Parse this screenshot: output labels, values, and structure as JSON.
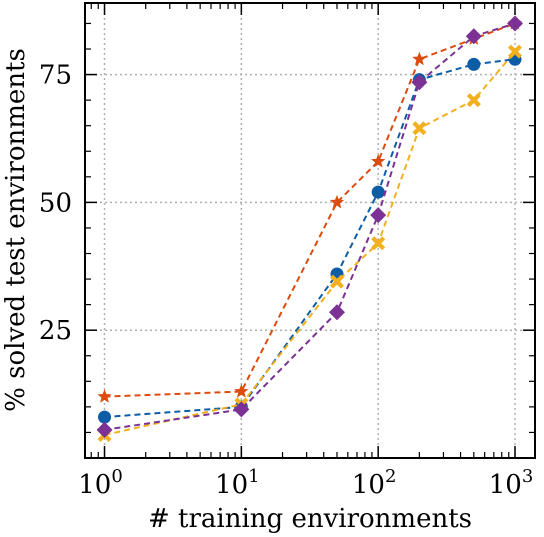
{
  "chart_data": {
    "type": "line",
    "title": "",
    "xlabel": "# training environments",
    "ylabel": "% solved test environments",
    "xscale": "log",
    "xlim": [
      0.72,
      1400
    ],
    "ylim": [
      0,
      89
    ],
    "grid": true,
    "x_ticks": [
      {
        "value": 1,
        "base": "10",
        "exp": "0"
      },
      {
        "value": 10,
        "base": "10",
        "exp": "1"
      },
      {
        "value": 100,
        "base": "10",
        "exp": "2"
      },
      {
        "value": 1000,
        "base": "10",
        "exp": "3"
      }
    ],
    "y_ticks": [
      25,
      50,
      75
    ],
    "x": [
      1,
      10,
      50,
      100,
      200,
      500,
      1000
    ],
    "series": [
      {
        "color": "#0C5DA5",
        "marker": "circle",
        "values": [
          8,
          10,
          36,
          52,
          74,
          77,
          78
        ]
      },
      {
        "color": "#DC4C0E",
        "marker": "star",
        "values": [
          12,
          13,
          50,
          58,
          78,
          82,
          85
        ]
      },
      {
        "color": "#F2B01E",
        "marker": "x-cross",
        "values": [
          4.5,
          10.5,
          34.5,
          42,
          64.5,
          70,
          79.5
        ]
      },
      {
        "color": "#7B3294",
        "marker": "diamond",
        "values": [
          5.5,
          9.5,
          28.5,
          47.5,
          73.5,
          82.5,
          85
        ]
      }
    ]
  }
}
